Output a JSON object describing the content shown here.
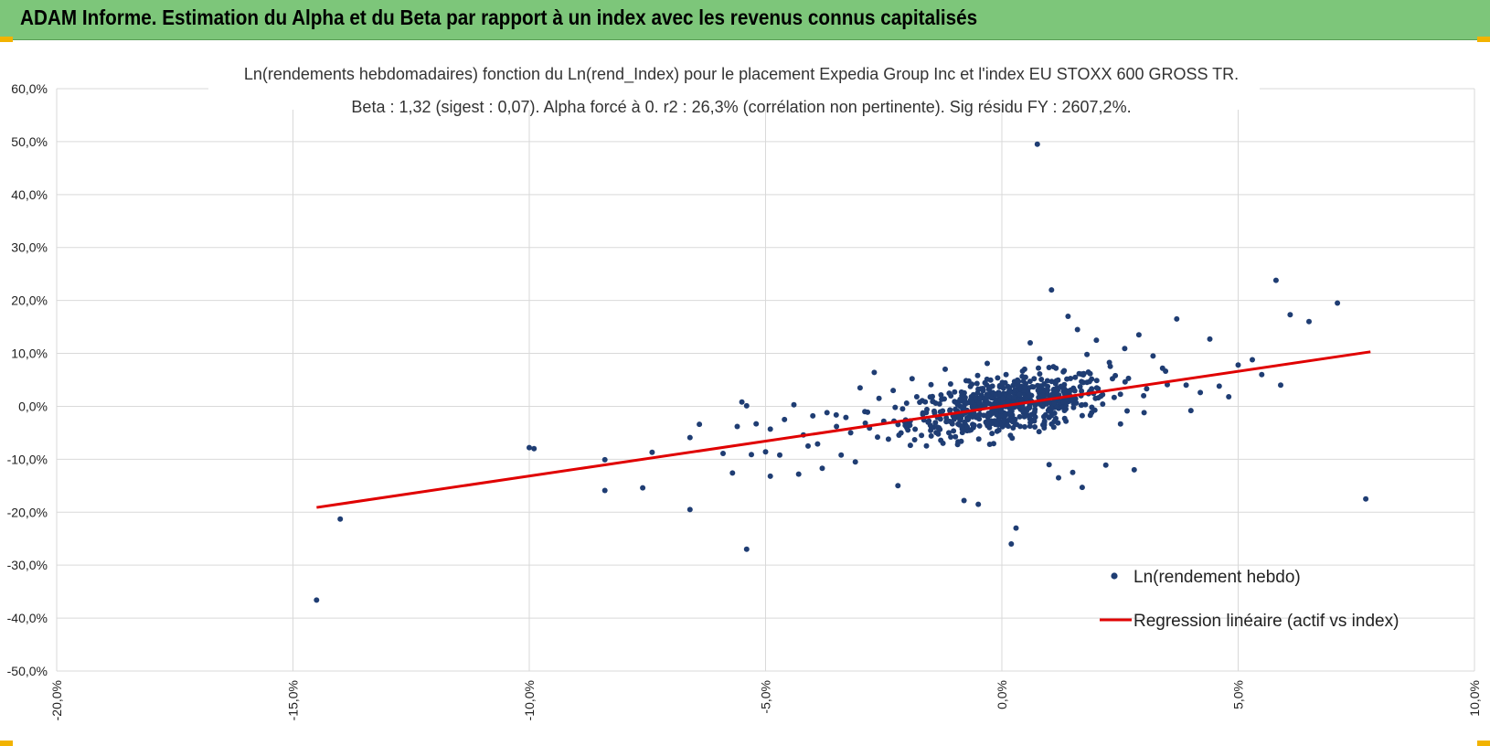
{
  "header": {
    "title": "ADAM Informe. Estimation du Alpha et du Beta par rapport à un index avec les revenus connus capitalisés"
  },
  "chart_data": {
    "type": "scatter",
    "title": "Ln(rendements hebdomadaires) fonction du Ln(rend_Index) pour le placement Expedia Group Inc et l'index EU STOXX 600 GROSS TR.",
    "subtitle": "Beta : 1,32 (sigest : 0,07). Alpha forcé à 0. r2 : 26,3% (corrélation non pertinente). Sig résidu FY : 2607,2%.",
    "xlabel": "",
    "ylabel": "",
    "xlim": [
      -20,
      10
    ],
    "ylim": [
      -50,
      60
    ],
    "x_ticks": [
      "-20,0%",
      "-15,0%",
      "-10,0%",
      "-5,0%",
      "0,0%",
      "5,0%",
      "10,0%"
    ],
    "y_ticks": [
      "60,0%",
      "50,0%",
      "40,0%",
      "30,0%",
      "20,0%",
      "10,0%",
      "0,0%",
      "-10,0%",
      "-20,0%",
      "-30,0%",
      "-40,0%",
      "-50,0%"
    ],
    "grid": true,
    "legend_position": "bottom-right",
    "colors": {
      "points": "#1f3d73",
      "regression": "#e00000",
      "grid": "#d9d9d9"
    },
    "series": [
      {
        "name": "Ln(rendement hebdo)",
        "type": "scatter",
        "points": [
          [
            -14.5,
            -36.6
          ],
          [
            -14.0,
            -21.3
          ],
          [
            -10.0,
            -7.8
          ],
          [
            -9.9,
            -8.0
          ],
          [
            -8.4,
            -10.1
          ],
          [
            -8.4,
            -15.9
          ],
          [
            -7.6,
            -15.4
          ],
          [
            -7.4,
            -8.7
          ],
          [
            -6.6,
            -19.5
          ],
          [
            -6.6,
            -5.9
          ],
          [
            -6.4,
            -3.4
          ],
          [
            -5.9,
            -8.9
          ],
          [
            -5.7,
            -12.6
          ],
          [
            -5.6,
            -3.8
          ],
          [
            -5.5,
            0.8
          ],
          [
            -5.4,
            -27.0
          ],
          [
            -5.4,
            0.1
          ],
          [
            -5.3,
            -9.1
          ],
          [
            -5.2,
            -3.3
          ],
          [
            -5.0,
            -8.6
          ],
          [
            -4.9,
            -13.2
          ],
          [
            -4.9,
            -4.3
          ],
          [
            -4.7,
            -9.2
          ],
          [
            -4.6,
            -2.5
          ],
          [
            -4.4,
            0.3
          ],
          [
            -4.3,
            -12.8
          ],
          [
            -4.2,
            -5.4
          ],
          [
            -4.1,
            -7.5
          ],
          [
            -4.0,
            -1.8
          ],
          [
            -3.9,
            -7.1
          ],
          [
            -3.8,
            -11.7
          ],
          [
            -3.7,
            -1.2
          ],
          [
            -3.5,
            -3.8
          ],
          [
            -3.4,
            -9.2
          ],
          [
            -3.3,
            -2.1
          ],
          [
            -3.2,
            -5.0
          ],
          [
            -3.1,
            -10.5
          ],
          [
            -3.0,
            3.5
          ],
          [
            -2.9,
            -1.0
          ],
          [
            -2.8,
            -4.1
          ],
          [
            -2.7,
            6.4
          ],
          [
            -2.6,
            1.5
          ],
          [
            -2.5,
            -2.8
          ],
          [
            -2.4,
            -6.2
          ],
          [
            -2.3,
            3.0
          ],
          [
            -2.2,
            -15.0
          ],
          [
            -2.1,
            -0.5
          ],
          [
            -2.0,
            -3.6
          ],
          [
            -1.9,
            5.2
          ],
          [
            -1.8,
            1.8
          ],
          [
            -1.7,
            -5.5
          ],
          [
            -1.6,
            -1.2
          ],
          [
            -1.5,
            4.1
          ],
          [
            -1.4,
            0.6
          ],
          [
            -1.3,
            -2.4
          ],
          [
            -1.2,
            7.0
          ],
          [
            -1.1,
            -0.8
          ],
          [
            -1.0,
            2.7
          ],
          [
            -0.9,
            -3.5
          ],
          [
            -0.8,
            -17.8
          ],
          [
            -0.7,
            4.8
          ],
          [
            -0.6,
            0.2
          ],
          [
            -0.5,
            -18.5
          ],
          [
            -0.4,
            1.6
          ],
          [
            -0.3,
            -2.0
          ],
          [
            -0.2,
            3.8
          ],
          [
            -0.1,
            -4.7
          ],
          [
            0.0,
            0.9
          ],
          [
            0.1,
            -1.5
          ],
          [
            0.2,
            -26.0
          ],
          [
            0.3,
            -23.0
          ],
          [
            0.4,
            2.4
          ],
          [
            0.5,
            5.5
          ],
          [
            0.6,
            12.0
          ],
          [
            0.7,
            -0.6
          ],
          [
            0.75,
            49.5
          ],
          [
            0.8,
            9.0
          ],
          [
            0.9,
            -3.1
          ],
          [
            1.0,
            -11.0
          ],
          [
            1.05,
            22.0
          ],
          [
            1.1,
            3.2
          ],
          [
            1.2,
            -13.5
          ],
          [
            1.3,
            6.5
          ],
          [
            1.4,
            17.0
          ],
          [
            1.5,
            -12.5
          ],
          [
            1.6,
            14.5
          ],
          [
            1.7,
            -15.3
          ],
          [
            1.8,
            9.8
          ],
          [
            1.9,
            -1.2
          ],
          [
            2.0,
            12.5
          ],
          [
            2.2,
            -11.1
          ],
          [
            2.4,
            5.8
          ],
          [
            2.6,
            10.9
          ],
          [
            2.8,
            -12.0
          ],
          [
            2.9,
            13.5
          ],
          [
            3.0,
            2.0
          ],
          [
            3.2,
            9.5
          ],
          [
            3.4,
            7.2
          ],
          [
            3.5,
            4.1
          ],
          [
            3.7,
            16.5
          ],
          [
            3.9,
            4.0
          ],
          [
            4.0,
            -0.8
          ],
          [
            4.2,
            2.6
          ],
          [
            4.4,
            12.7
          ],
          [
            4.6,
            3.8
          ],
          [
            4.8,
            1.8
          ],
          [
            5.0,
            7.8
          ],
          [
            5.3,
            8.8
          ],
          [
            5.5,
            6.0
          ],
          [
            5.8,
            23.8
          ],
          [
            5.9,
            4.0
          ],
          [
            6.1,
            17.3
          ],
          [
            6.5,
            16.0
          ],
          [
            7.1,
            19.5
          ],
          [
            7.7,
            -17.5
          ]
        ]
      },
      {
        "name": "Regression linéaire (actif vs index)",
        "type": "line",
        "x": [
          -14.5,
          7.8
        ],
        "y": [
          -19.1,
          10.3
        ]
      }
    ]
  }
}
